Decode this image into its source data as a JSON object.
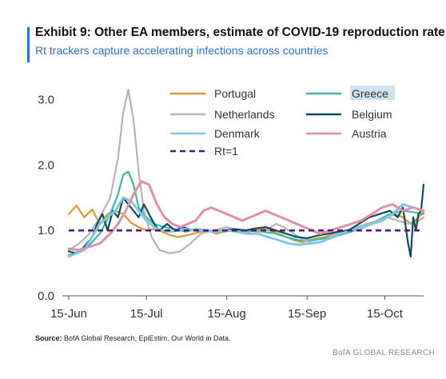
{
  "header": {
    "title": "Exhibit 9: Other EA members, estimate of COVID-19 reproduction rate",
    "subtitle": "Rt trackers capture accelerating infections across countries"
  },
  "footer": {
    "source_label": "Source:",
    "source_text": "BofA Global Research, EpiEstim, Our World in Data.",
    "brand": "BofA GLOBAL RESEARCH"
  },
  "chart_data": {
    "type": "line",
    "title": "Exhibit 9: Other EA members, estimate of COVID-19 reproduction rate",
    "subtitle": "Rt trackers capture accelerating infections across countries",
    "xlabel": "",
    "ylabel": "",
    "x_start": "2020-06-15",
    "x_end": "2020-10-30",
    "ylim": [
      0.0,
      3.3
    ],
    "yticks": [
      0.0,
      1.0,
      2.0,
      3.0
    ],
    "ytick_labels": [
      "0.0",
      "1.0",
      "2.0",
      "3.0"
    ],
    "xticks": [
      "2020-06-15",
      "2020-07-15",
      "2020-08-15",
      "2020-09-15",
      "2020-10-15"
    ],
    "xtick_labels": [
      "15-Jun",
      "15-Jul",
      "15-Aug",
      "15-Sep",
      "15-Oct"
    ],
    "grid": false,
    "legend_position": "top",
    "reference_line": {
      "name": "Rt=1",
      "value": 1.0,
      "color": "#4b1d6b",
      "style": "dashed"
    },
    "series": [
      {
        "name": "Portugal",
        "color": "#e0962a",
        "points": [
          [
            "2020-06-15",
            1.25
          ],
          [
            "2020-06-18",
            1.38
          ],
          [
            "2020-06-21",
            1.2
          ],
          [
            "2020-06-24",
            1.32
          ],
          [
            "2020-06-27",
            1.1
          ],
          [
            "2020-06-30",
            1.25
          ],
          [
            "2020-07-03",
            1.3
          ],
          [
            "2020-07-06",
            1.25
          ],
          [
            "2020-07-09",
            1.12
          ],
          [
            "2020-07-12",
            1.05
          ],
          [
            "2020-07-15",
            1.0
          ],
          [
            "2020-07-18",
            1.02
          ],
          [
            "2020-07-21",
            0.98
          ],
          [
            "2020-07-24",
            0.93
          ],
          [
            "2020-07-27",
            0.9
          ],
          [
            "2020-07-30",
            0.92
          ],
          [
            "2020-08-02",
            0.95
          ],
          [
            "2020-08-05",
            0.98
          ],
          [
            "2020-08-08",
            1.0
          ],
          [
            "2020-08-11",
            0.95
          ],
          [
            "2020-08-14",
            0.98
          ],
          [
            "2020-08-17",
            1.0
          ],
          [
            "2020-08-20",
            0.97
          ],
          [
            "2020-08-23",
            0.98
          ],
          [
            "2020-08-26",
            1.0
          ],
          [
            "2020-08-29",
            1.02
          ],
          [
            "2020-09-01",
            1.0
          ],
          [
            "2020-09-04",
            0.95
          ],
          [
            "2020-09-07",
            0.9
          ],
          [
            "2020-09-10",
            0.85
          ],
          [
            "2020-09-13",
            0.82
          ],
          [
            "2020-09-16",
            0.85
          ],
          [
            "2020-09-19",
            0.88
          ],
          [
            "2020-09-22",
            0.9
          ],
          [
            "2020-09-25",
            0.95
          ],
          [
            "2020-09-28",
            0.98
          ],
          [
            "2020-10-01",
            1.0
          ],
          [
            "2020-10-04",
            1.02
          ],
          [
            "2020-10-07",
            1.05
          ],
          [
            "2020-10-10",
            1.1
          ],
          [
            "2020-10-13",
            1.15
          ],
          [
            "2020-10-16",
            1.2
          ],
          [
            "2020-10-19",
            1.25
          ],
          [
            "2020-10-22",
            1.2
          ],
          [
            "2020-10-25",
            1.1
          ],
          [
            "2020-10-28",
            1.2
          ],
          [
            "2020-10-30",
            1.28
          ]
        ]
      },
      {
        "name": "Greece",
        "color": "#3fb8a8",
        "points": [
          [
            "2020-06-15",
            0.62
          ],
          [
            "2020-06-19",
            0.68
          ],
          [
            "2020-06-23",
            0.78
          ],
          [
            "2020-06-27",
            0.95
          ],
          [
            "2020-07-01",
            1.25
          ],
          [
            "2020-07-04",
            1.55
          ],
          [
            "2020-07-06",
            1.85
          ],
          [
            "2020-07-08",
            1.9
          ],
          [
            "2020-07-10",
            1.7
          ],
          [
            "2020-07-12",
            1.35
          ],
          [
            "2020-07-15",
            1.2
          ],
          [
            "2020-07-18",
            1.1
          ],
          [
            "2020-07-22",
            1.05
          ],
          [
            "2020-07-26",
            1.02
          ],
          [
            "2020-07-30",
            0.98
          ],
          [
            "2020-08-03",
            1.02
          ],
          [
            "2020-08-08",
            1.0
          ],
          [
            "2020-08-13",
            1.0
          ],
          [
            "2020-08-18",
            1.02
          ],
          [
            "2020-08-23",
            1.0
          ],
          [
            "2020-08-28",
            0.98
          ],
          [
            "2020-09-02",
            0.96
          ],
          [
            "2020-09-07",
            0.9
          ],
          [
            "2020-09-12",
            0.85
          ],
          [
            "2020-09-17",
            0.85
          ],
          [
            "2020-09-22",
            0.88
          ],
          [
            "2020-09-27",
            0.92
          ],
          [
            "2020-10-02",
            0.98
          ],
          [
            "2020-10-07",
            1.05
          ],
          [
            "2020-10-12",
            1.15
          ],
          [
            "2020-10-17",
            1.25
          ],
          [
            "2020-10-22",
            1.3
          ],
          [
            "2020-10-26",
            1.28
          ],
          [
            "2020-10-30",
            1.25
          ]
        ]
      },
      {
        "name": "Netherlands",
        "color": "#b5b5b5",
        "points": [
          [
            "2020-06-15",
            0.7
          ],
          [
            "2020-06-19",
            0.8
          ],
          [
            "2020-06-23",
            0.95
          ],
          [
            "2020-06-27",
            1.2
          ],
          [
            "2020-07-01",
            1.5
          ],
          [
            "2020-07-04",
            2.1
          ],
          [
            "2020-07-06",
            2.8
          ],
          [
            "2020-07-08",
            3.15
          ],
          [
            "2020-07-10",
            2.7
          ],
          [
            "2020-07-12",
            1.9
          ],
          [
            "2020-07-14",
            1.3
          ],
          [
            "2020-07-17",
            0.9
          ],
          [
            "2020-07-20",
            0.7
          ],
          [
            "2020-07-24",
            0.65
          ],
          [
            "2020-07-28",
            0.68
          ],
          [
            "2020-08-01",
            0.8
          ],
          [
            "2020-08-05",
            0.95
          ],
          [
            "2020-08-10",
            1.0
          ],
          [
            "2020-08-15",
            1.05
          ],
          [
            "2020-08-20",
            1.0
          ],
          [
            "2020-08-25",
            0.95
          ],
          [
            "2020-08-30",
            1.0
          ],
          [
            "2020-09-03",
            1.1
          ],
          [
            "2020-09-06",
            1.05
          ],
          [
            "2020-09-10",
            0.95
          ],
          [
            "2020-09-14",
            0.85
          ],
          [
            "2020-09-18",
            0.8
          ],
          [
            "2020-09-22",
            0.85
          ],
          [
            "2020-09-26",
            0.95
          ],
          [
            "2020-09-30",
            1.0
          ],
          [
            "2020-10-04",
            1.05
          ],
          [
            "2020-10-08",
            1.1
          ],
          [
            "2020-10-12",
            1.15
          ],
          [
            "2020-10-16",
            1.2
          ],
          [
            "2020-10-20",
            1.15
          ],
          [
            "2020-10-24",
            1.1
          ],
          [
            "2020-10-28",
            1.15
          ],
          [
            "2020-10-30",
            1.2
          ]
        ]
      },
      {
        "name": "Belgium",
        "color": "#0f4c5c",
        "points": [
          [
            "2020-06-15",
            0.68
          ],
          [
            "2020-06-18",
            0.65
          ],
          [
            "2020-06-21",
            0.75
          ],
          [
            "2020-06-24",
            0.9
          ],
          [
            "2020-06-26",
            1.1
          ],
          [
            "2020-06-28",
            1.25
          ],
          [
            "2020-06-30",
            1.0
          ],
          [
            "2020-07-02",
            1.3
          ],
          [
            "2020-07-04",
            1.2
          ],
          [
            "2020-07-06",
            1.5
          ],
          [
            "2020-07-08",
            1.4
          ],
          [
            "2020-07-10",
            1.3
          ],
          [
            "2020-07-12",
            1.2
          ],
          [
            "2020-07-14",
            1.4
          ],
          [
            "2020-07-16",
            1.25
          ],
          [
            "2020-07-18",
            1.1
          ],
          [
            "2020-07-20",
            1.0
          ],
          [
            "2020-07-23",
            1.1
          ],
          [
            "2020-07-26",
            1.0
          ],
          [
            "2020-07-29",
            1.05
          ],
          [
            "2020-08-02",
            1.0
          ],
          [
            "2020-08-06",
            1.0
          ],
          [
            "2020-08-10",
            0.98
          ],
          [
            "2020-08-14",
            1.0
          ],
          [
            "2020-08-18",
            1.02
          ],
          [
            "2020-08-22",
            1.0
          ],
          [
            "2020-08-26",
            1.03
          ],
          [
            "2020-08-30",
            1.05
          ],
          [
            "2020-09-03",
            1.0
          ],
          [
            "2020-09-07",
            0.95
          ],
          [
            "2020-09-11",
            0.9
          ],
          [
            "2020-09-15",
            0.88
          ],
          [
            "2020-09-19",
            0.92
          ],
          [
            "2020-09-23",
            0.95
          ],
          [
            "2020-09-27",
            0.98
          ],
          [
            "2020-10-01",
            1.0
          ],
          [
            "2020-10-05",
            1.1
          ],
          [
            "2020-10-09",
            1.2
          ],
          [
            "2020-10-13",
            1.25
          ],
          [
            "2020-10-17",
            1.3
          ],
          [
            "2020-10-20",
            1.2
          ],
          [
            "2020-10-22",
            1.35
          ],
          [
            "2020-10-24",
            0.8
          ],
          [
            "2020-10-25",
            0.6
          ],
          [
            "2020-10-26",
            1.2
          ],
          [
            "2020-10-27",
            1.0
          ],
          [
            "2020-10-28",
            1.25
          ],
          [
            "2020-10-29",
            1.3
          ],
          [
            "2020-10-30",
            1.7
          ]
        ]
      },
      {
        "name": "Denmark",
        "color": "#7ec8e6",
        "points": [
          [
            "2020-06-15",
            0.6
          ],
          [
            "2020-06-18",
            0.65
          ],
          [
            "2020-06-21",
            0.7
          ],
          [
            "2020-06-24",
            0.9
          ],
          [
            "2020-06-27",
            1.1
          ],
          [
            "2020-06-30",
            1.2
          ],
          [
            "2020-07-03",
            1.3
          ],
          [
            "2020-07-06",
            1.5
          ],
          [
            "2020-07-09",
            1.45
          ],
          [
            "2020-07-12",
            1.3
          ],
          [
            "2020-07-15",
            1.15
          ],
          [
            "2020-07-18",
            1.05
          ],
          [
            "2020-07-21",
            1.0
          ],
          [
            "2020-07-24",
            0.98
          ],
          [
            "2020-07-27",
            1.0
          ],
          [
            "2020-07-30",
            1.02
          ],
          [
            "2020-08-03",
            1.0
          ],
          [
            "2020-08-07",
            1.0
          ],
          [
            "2020-08-11",
            0.98
          ],
          [
            "2020-08-15",
            1.0
          ],
          [
            "2020-08-19",
            0.98
          ],
          [
            "2020-08-23",
            0.95
          ],
          [
            "2020-08-27",
            0.95
          ],
          [
            "2020-08-31",
            0.9
          ],
          [
            "2020-09-04",
            0.85
          ],
          [
            "2020-09-08",
            0.8
          ],
          [
            "2020-09-12",
            0.78
          ],
          [
            "2020-09-16",
            0.8
          ],
          [
            "2020-09-20",
            0.82
          ],
          [
            "2020-09-24",
            0.88
          ],
          [
            "2020-09-28",
            0.95
          ],
          [
            "2020-10-02",
            1.0
          ],
          [
            "2020-10-06",
            1.05
          ],
          [
            "2020-10-10",
            1.1
          ],
          [
            "2020-10-14",
            1.15
          ],
          [
            "2020-10-18",
            1.25
          ],
          [
            "2020-10-22",
            1.4
          ],
          [
            "2020-10-26",
            1.35
          ],
          [
            "2020-10-30",
            1.3
          ]
        ]
      },
      {
        "name": "Austria",
        "color": "#e38ea3",
        "points": [
          [
            "2020-06-15",
            0.72
          ],
          [
            "2020-06-19",
            0.7
          ],
          [
            "2020-06-23",
            0.75
          ],
          [
            "2020-06-27",
            0.8
          ],
          [
            "2020-07-01",
            0.95
          ],
          [
            "2020-07-04",
            1.1
          ],
          [
            "2020-07-07",
            1.3
          ],
          [
            "2020-07-10",
            1.55
          ],
          [
            "2020-07-13",
            1.75
          ],
          [
            "2020-07-16",
            1.7
          ],
          [
            "2020-07-19",
            1.4
          ],
          [
            "2020-07-22",
            1.2
          ],
          [
            "2020-07-25",
            1.1
          ],
          [
            "2020-07-28",
            1.05
          ],
          [
            "2020-07-31",
            1.1
          ],
          [
            "2020-08-03",
            1.15
          ],
          [
            "2020-08-06",
            1.3
          ],
          [
            "2020-08-09",
            1.35
          ],
          [
            "2020-08-12",
            1.3
          ],
          [
            "2020-08-15",
            1.25
          ],
          [
            "2020-08-18",
            1.2
          ],
          [
            "2020-08-21",
            1.15
          ],
          [
            "2020-08-24",
            1.2
          ],
          [
            "2020-08-27",
            1.25
          ],
          [
            "2020-08-30",
            1.3
          ],
          [
            "2020-09-02",
            1.25
          ],
          [
            "2020-09-05",
            1.2
          ],
          [
            "2020-09-08",
            1.15
          ],
          [
            "2020-09-11",
            1.1
          ],
          [
            "2020-09-14",
            1.05
          ],
          [
            "2020-09-17",
            1.0
          ],
          [
            "2020-09-20",
            0.95
          ],
          [
            "2020-09-24",
            1.0
          ],
          [
            "2020-09-28",
            1.05
          ],
          [
            "2020-10-02",
            1.1
          ],
          [
            "2020-10-06",
            1.15
          ],
          [
            "2020-10-10",
            1.25
          ],
          [
            "2020-10-14",
            1.35
          ],
          [
            "2020-10-18",
            1.4
          ],
          [
            "2020-10-22",
            1.3
          ],
          [
            "2020-10-26",
            1.35
          ],
          [
            "2020-10-30",
            1.3
          ]
        ]
      }
    ]
  }
}
